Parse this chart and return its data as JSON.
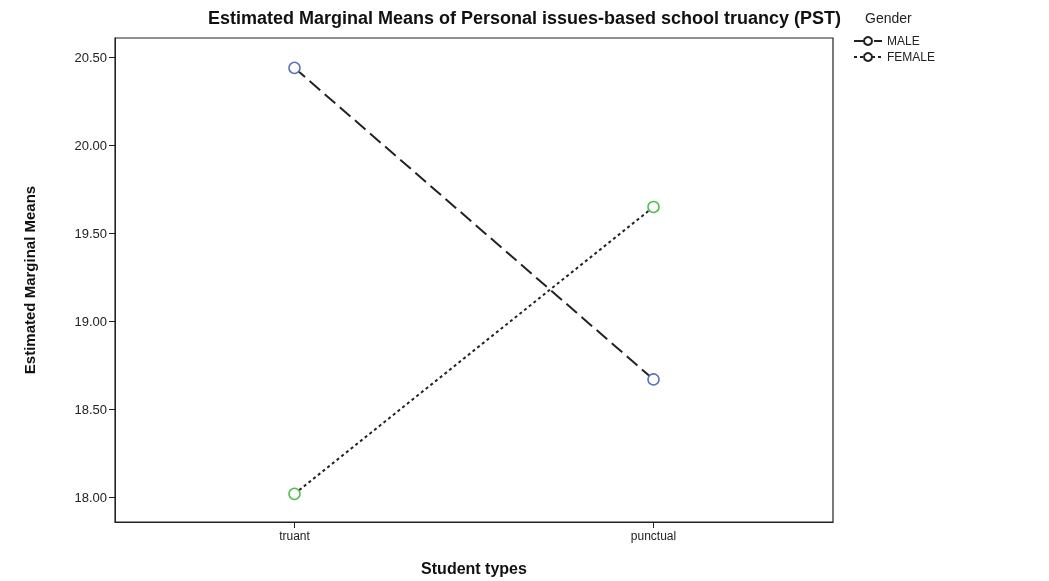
{
  "chart_data": {
    "type": "line",
    "title": "Estimated Marginal Means of Personal issues-based school truancy (PST)",
    "xlabel": "Student types",
    "ylabel": "Estimated Marginal Means",
    "legend_title": "Gender",
    "categories": [
      "truant",
      "punctual"
    ],
    "series": [
      {
        "name": "MALE",
        "color": "#222222",
        "colors": [
          "#5b6fc0",
          "#5b6fc0"
        ],
        "values": [
          20.44,
          18.67
        ],
        "line_style": "dashed"
      },
      {
        "name": "FEMALE",
        "color": "#222222",
        "colors": [
          "#4cbf4c",
          "#4cbf4c"
        ],
        "values": [
          18.02,
          19.65
        ],
        "line_style": "dotted"
      }
    ],
    "ylim": [
      17.86,
      20.61
    ],
    "yticks": [
      {
        "value": 18,
        "label": "18.00"
      },
      {
        "value": 18.5,
        "label": "18.50"
      },
      {
        "value": 19,
        "label": "19.00"
      },
      {
        "value": 19.5,
        "label": "19.50"
      },
      {
        "value": 20,
        "label": "20.00"
      },
      {
        "value": 20.5,
        "label": "20.50"
      }
    ],
    "grid": false,
    "legend": "top right",
    "marker": "circle"
  }
}
